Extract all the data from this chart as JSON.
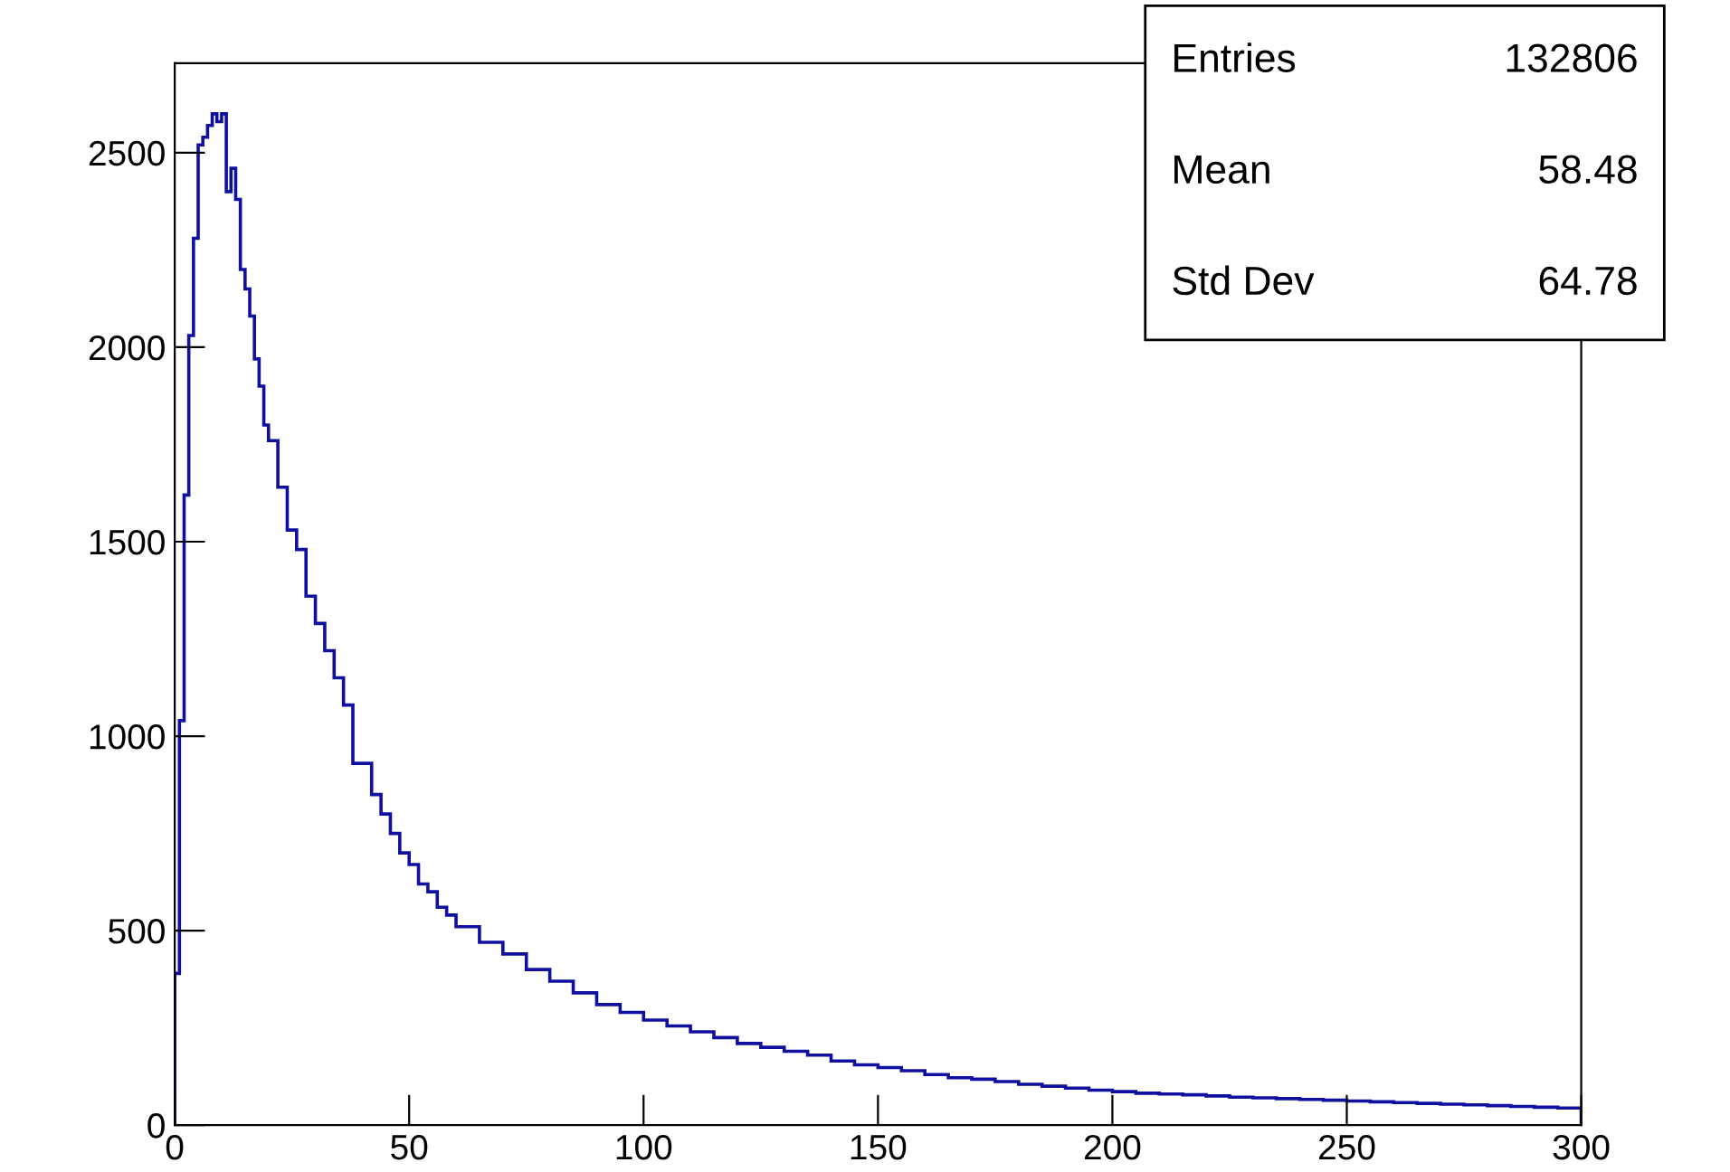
{
  "chart_data": {
    "type": "histogram",
    "color": "#1010a0",
    "bins": [
      0,
      1,
      2,
      3,
      4,
      5,
      6,
      7,
      8,
      9,
      10,
      11,
      12,
      13,
      14,
      15,
      16,
      17,
      18,
      19,
      20,
      22,
      24,
      26,
      28,
      30,
      32,
      34,
      36,
      38,
      40,
      42,
      44,
      46,
      48,
      50,
      52,
      54,
      56,
      58,
      60,
      65,
      70,
      75,
      80,
      85,
      90,
      95,
      100,
      105,
      110,
      115,
      120,
      125,
      130,
      135,
      140,
      145,
      150,
      155,
      160,
      165,
      170,
      175,
      180,
      185,
      190,
      195,
      200,
      205,
      210,
      215,
      220,
      225,
      230,
      235,
      240,
      245,
      250,
      255,
      260,
      265,
      270,
      275,
      280,
      285,
      290,
      295,
      300
    ],
    "values": [
      390,
      1040,
      1620,
      2030,
      2280,
      2520,
      2540,
      2570,
      2600,
      2580,
      2600,
      2400,
      2460,
      2380,
      2200,
      2150,
      2080,
      1970,
      1900,
      1800,
      1760,
      1640,
      1530,
      1480,
      1360,
      1290,
      1220,
      1150,
      1080,
      930,
      930,
      850,
      800,
      750,
      700,
      670,
      620,
      600,
      560,
      540,
      510,
      470,
      440,
      400,
      370,
      340,
      310,
      290,
      270,
      255,
      240,
      225,
      210,
      200,
      190,
      180,
      165,
      155,
      148,
      140,
      130,
      122,
      118,
      112,
      105,
      100,
      95,
      90,
      86,
      82,
      80,
      78,
      75,
      72,
      70,
      68,
      66,
      64,
      62,
      60,
      58,
      56,
      54,
      52,
      50,
      48,
      46,
      44
    ],
    "xlim": [
      0,
      300
    ],
    "xticks": [
      0,
      50,
      100,
      150,
      200,
      250,
      300
    ],
    "ylim": [
      0,
      2730
    ],
    "yticks": [
      0,
      500,
      1000,
      1500,
      2000,
      2500
    ],
    "annotations": [
      "Entries",
      "132806",
      "Mean",
      "58.48",
      "Std Dev",
      "64.78"
    ]
  }
}
